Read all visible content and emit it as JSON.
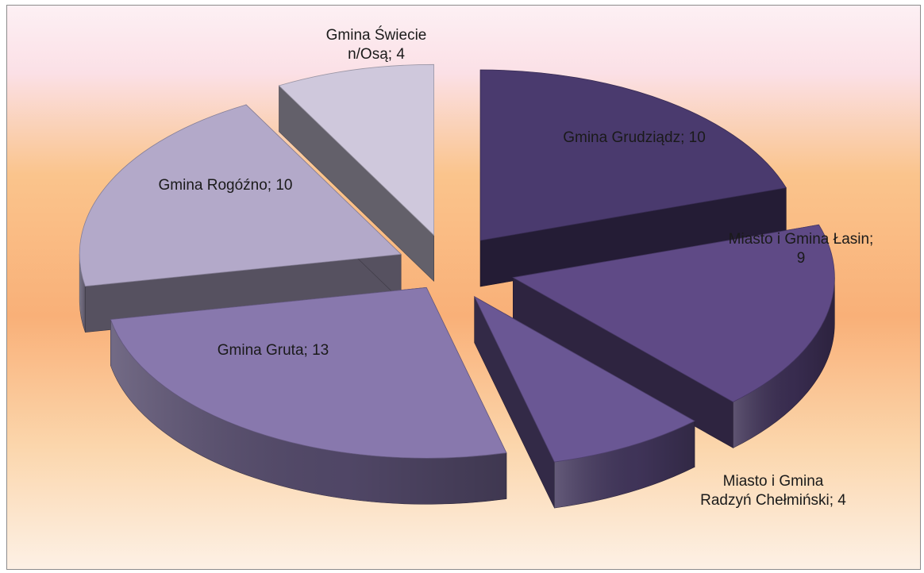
{
  "chart_data": {
    "type": "pie",
    "style": "3d-exploded",
    "title": "",
    "legend": "none",
    "slices": [
      {
        "label": "Gmina Grudziądz",
        "value": 10,
        "color": "#4a3a6e",
        "label_lines": [
          "Gmina Grudziądz; 10"
        ]
      },
      {
        "label": "Miasto i Gmina Łasin",
        "value": 9,
        "color": "#5f4a86",
        "label_lines": [
          "Miasto i Gmina Łasin;",
          "9"
        ]
      },
      {
        "label": "Miasto i Gmina Radzyń Chełmiński",
        "value": 4,
        "color": "#6a5794",
        "label_lines": [
          "Miasto i Gmina",
          "Radzyń Chełmiński; 4"
        ]
      },
      {
        "label": "Gmina Gruta",
        "value": 13,
        "color": "#8878ad",
        "label_lines": [
          "Gmina Gruta; 13"
        ]
      },
      {
        "label": "Gmina Rogóźno",
        "value": 10,
        "color": "#b3a9c9",
        "label_lines": [
          "Gmina Rogóźno; 10"
        ]
      },
      {
        "label": "Gmina Świecie n/Osą",
        "value": 4,
        "color": "#cfc8dc",
        "label_lines": [
          "Gmina Świecie",
          "n/Osą; 4"
        ]
      }
    ]
  }
}
